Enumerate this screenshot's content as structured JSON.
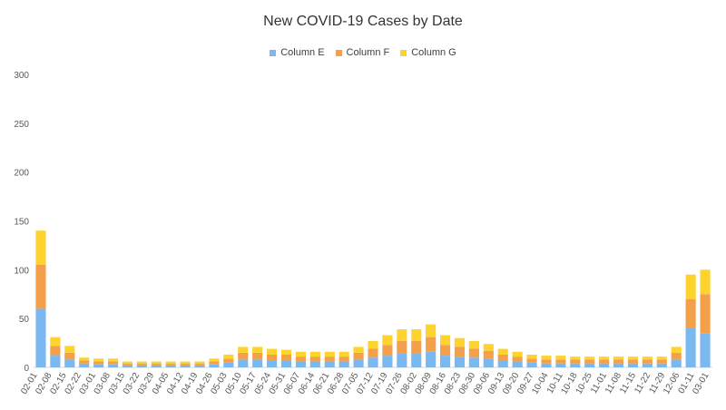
{
  "chart_data": {
    "type": "bar",
    "stacked": true,
    "title": "New COVID-19 Cases by Date",
    "xlabel": "",
    "ylabel": "",
    "ylim": [
      0,
      300
    ],
    "yticks": [
      0,
      50,
      100,
      150,
      200,
      250,
      300
    ],
    "grid": false,
    "legend": "top",
    "x_tick_labels": [
      "02-01",
      "02-08",
      "02-15",
      "02-22",
      "03-01",
      "03-08",
      "03-15",
      "03-22",
      "03-29",
      "04-05",
      "04-12",
      "04-19",
      "04-26",
      "05-03",
      "05-10",
      "05-17",
      "05-24",
      "05-31",
      "06-07",
      "06-14",
      "06-21",
      "06-28",
      "07-05",
      "07-12",
      "07-19",
      "07-26",
      "08-02",
      "08-09",
      "08-16",
      "08-23",
      "08-30",
      "09-06",
      "09-13",
      "09-20",
      "09-27",
      "10-04",
      "10-11",
      "10-18",
      "10-25",
      "11-01",
      "11-08",
      "11-15",
      "11-22",
      "11-29",
      "12-06",
      "01-11",
      "03-01"
    ],
    "series": [
      {
        "name": "Column E",
        "color": "#7cb8f0",
        "weekly_values": [
          60,
          12,
          8,
          4,
          3,
          3,
          2,
          2,
          2,
          2,
          2,
          2,
          3,
          5,
          8,
          8,
          7,
          7,
          6,
          6,
          6,
          6,
          8,
          10,
          12,
          14,
          14,
          16,
          12,
          11,
          10,
          9,
          7,
          6,
          5,
          4,
          4,
          4,
          4,
          4,
          4,
          4,
          4,
          4,
          8,
          40,
          35
        ]
      },
      {
        "name": "Column F",
        "color": "#f4a04a",
        "weekly_values": [
          45,
          10,
          7,
          3,
          3,
          3,
          2,
          2,
          2,
          2,
          2,
          2,
          3,
          4,
          7,
          7,
          6,
          6,
          5,
          5,
          5,
          5,
          7,
          9,
          11,
          13,
          13,
          15,
          11,
          10,
          9,
          8,
          6,
          5,
          4,
          4,
          4,
          4,
          4,
          4,
          4,
          4,
          4,
          4,
          7,
          30,
          40
        ]
      },
      {
        "name": "Column G",
        "color": "#ffd32e",
        "weekly_values": [
          35,
          9,
          7,
          3,
          3,
          3,
          2,
          2,
          2,
          2,
          2,
          2,
          3,
          4,
          6,
          6,
          6,
          5,
          5,
          5,
          5,
          5,
          6,
          8,
          10,
          12,
          12,
          13,
          10,
          9,
          8,
          7,
          6,
          5,
          4,
          4,
          4,
          3,
          3,
          3,
          3,
          3,
          3,
          3,
          6,
          25,
          25
        ]
      }
    ]
  }
}
